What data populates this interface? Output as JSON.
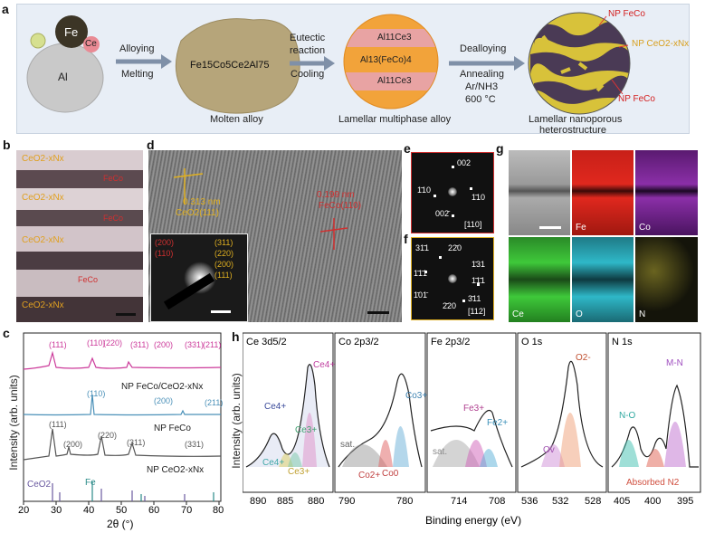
{
  "panel_a": {
    "label": "a",
    "elements": {
      "fe": "Fe",
      "ce": "Ce",
      "al": "Al"
    },
    "step1": {
      "top": "Alloying",
      "bottom": "Melting"
    },
    "molten": {
      "formula": "Fe15Co5Ce2Al75",
      "caption": "Molten alloy"
    },
    "step2": {
      "top1": "Eutectic",
      "top2": "reaction",
      "bottom": "Cooling"
    },
    "lamellar": {
      "band1": "Al11Ce3",
      "band2": "Al13(FeCo)4",
      "band3": "Al11Ce3",
      "caption": "Lamellar multiphase alloy"
    },
    "step3": {
      "top": "Dealloying",
      "l1": "Annealing",
      "l2": "Ar/NH3",
      "l3": "600 °C"
    },
    "nano": {
      "caption1": "Lamellar nanoporous",
      "caption2": "heterostructure",
      "lbl_top": "NP FeCo",
      "lbl_mid": "NP CeO2-xNx",
      "lbl_bot": "NP FeCo"
    }
  },
  "panel_b": {
    "label": "b",
    "layers": [
      "CeO2-xNx",
      "FeCo",
      "CeO2-xNx",
      "FeCo",
      "CeO2-xNx",
      "FeCo",
      "CeO2-xNx"
    ]
  },
  "panel_d": {
    "label": "d",
    "d1": "0.313 nm",
    "p1": "CeO2(111)",
    "d2": "0.199 nm",
    "p2": "FeCo(110)",
    "saed_left": [
      "(200)",
      "(110)"
    ],
    "saed_right": [
      "(311)",
      "(220)",
      "(200)",
      "(111)"
    ]
  },
  "panel_e": {
    "label": "e",
    "spots": [
      "002",
      "1̄10",
      "1̄10",
      "002̄"
    ],
    "zone": "[110]"
  },
  "panel_f": {
    "label": "f",
    "spots": [
      "31̄1",
      "22̄0",
      "1̄31",
      "1̄1̄1",
      "1̄1̄1",
      "1̄01̄",
      "2̄20",
      "3̄11"
    ],
    "zone": "[112]"
  },
  "panel_g": {
    "label": "g",
    "maps": [
      "",
      "Fe",
      "Co",
      "Ce",
      "O",
      "N"
    ],
    "colors": [
      "#9a9a9a",
      "#e0281e",
      "#8b2fa8",
      "#3fc93a",
      "#2fb8c8",
      "#c9c240"
    ]
  },
  "panel_c": {
    "label": "c",
    "ylabel": "Intensity (arb. units)",
    "xlabel": "2θ (°)",
    "xticks": [
      "20",
      "30",
      "40",
      "50",
      "60",
      "70",
      "80"
    ],
    "trace_labels": [
      "NP FeCo/CeO2-xNx",
      "NP FeCo",
      "NP CeO2-xNx"
    ],
    "ref_labels": [
      "CeO2",
      "Fe"
    ],
    "pink_peaks": [
      "(111)",
      "(110)",
      "(220)",
      "(311)",
      "(200)",
      "(331)",
      "(211)"
    ],
    "blue_peaks": [
      "(110)",
      "(200)",
      "(211)"
    ],
    "grey_peaks": [
      "(111)",
      "(200)",
      "(220)",
      "(311)",
      "(331)"
    ]
  },
  "panel_h": {
    "label": "h",
    "ylabel": "Intensity (arb. units)",
    "xlabel": "Binding energy (eV)",
    "subpanels": [
      {
        "title": "Ce 3d5/2",
        "ticks": [
          "890",
          "885",
          "880"
        ],
        "labels": [
          "Ce4+",
          "Ce4+",
          "Ce3+",
          "Ce3+",
          "Ce4+"
        ]
      },
      {
        "title": "Co 2p3/2",
        "ticks": [
          "790",
          "780"
        ],
        "labels": [
          "sat.",
          "Co3+",
          "Co2+",
          "Co0"
        ]
      },
      {
        "title": "Fe 2p3/2",
        "ticks": [
          "714",
          "708"
        ],
        "labels": [
          "sat.",
          "Fe3+",
          "Fe2+"
        ]
      },
      {
        "title": "O 1s",
        "ticks": [
          "536",
          "532",
          "528"
        ],
        "labels": [
          "O2-",
          "Ov"
        ]
      },
      {
        "title": "N 1s",
        "ticks": [
          "405",
          "400",
          "395"
        ],
        "labels": [
          "N-O",
          "M-N",
          "Absorbed N2"
        ]
      }
    ]
  }
}
